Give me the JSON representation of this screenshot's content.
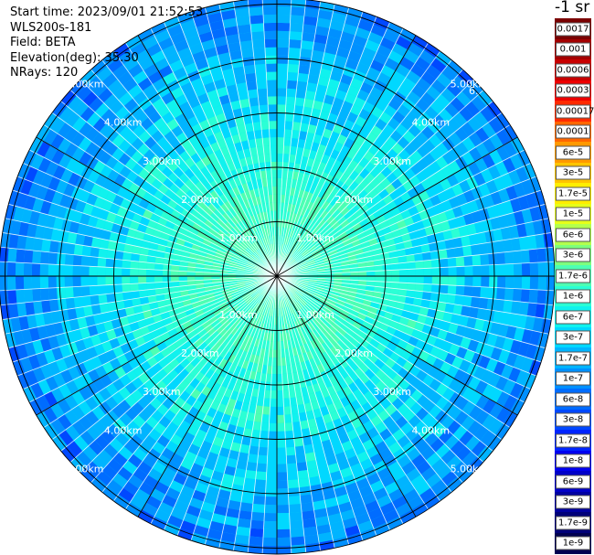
{
  "header": {
    "start_time": "Start time: 2023/09/01 21:52:53",
    "instrument": "WLS200s-181",
    "field": "Field: BETA",
    "elevation": "Elevation(deg): 35.30",
    "nrays": "NRays: 120"
  },
  "colorbar": {
    "title": "-1 sr",
    "levels": [
      {
        "label": "0.0017",
        "color": "#7a0000"
      },
      {
        "label": "0.001",
        "color": "#a30000"
      },
      {
        "label": "0.0006",
        "color": "#c80000"
      },
      {
        "label": "0.0003",
        "color": "#ee0000"
      },
      {
        "label": "0.00017",
        "color": "#ff2a00"
      },
      {
        "label": "0.0001",
        "color": "#ff6600"
      },
      {
        "label": "6e-5",
        "color": "#ff9900"
      },
      {
        "label": "3e-5",
        "color": "#ffc400"
      },
      {
        "label": "1.7e-5",
        "color": "#ffee00"
      },
      {
        "label": "1e-5",
        "color": "#e6ff1a"
      },
      {
        "label": "6e-6",
        "color": "#b3ff4d"
      },
      {
        "label": "3e-6",
        "color": "#7dff7d"
      },
      {
        "label": "1.7e-6",
        "color": "#4dffb3"
      },
      {
        "label": "1e-6",
        "color": "#2bffd5"
      },
      {
        "label": "6e-7",
        "color": "#10f2ee"
      },
      {
        "label": "3e-7",
        "color": "#00d8ff"
      },
      {
        "label": "1.7e-7",
        "color": "#00b4ff"
      },
      {
        "label": "1e-7",
        "color": "#0090ff"
      },
      {
        "label": "6e-8",
        "color": "#006cff"
      },
      {
        "label": "3e-8",
        "color": "#0048ff"
      },
      {
        "label": "1.7e-8",
        "color": "#0024ff"
      },
      {
        "label": "1e-8",
        "color": "#0000f0"
      },
      {
        "label": "6e-9",
        "color": "#0000c8"
      },
      {
        "label": "3e-9",
        "color": "#0000a0"
      },
      {
        "label": "1.7e-9",
        "color": "#000078"
      },
      {
        "label": "1e-9",
        "color": "#000050"
      }
    ]
  },
  "plot": {
    "ring_labels": [
      "1.00km",
      "2.00km",
      "3.00km",
      "4.00km",
      "5.00km"
    ],
    "partial_label": "6.",
    "ring_line_color": "#000000",
    "spoke_count": 12
  }
}
